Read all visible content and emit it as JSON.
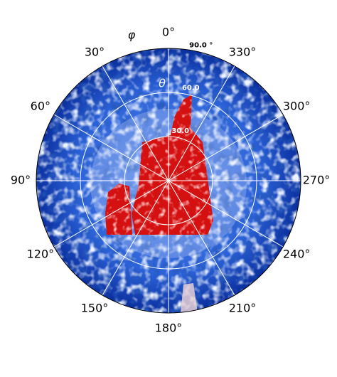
{
  "chart_data": {
    "type": "polar-image",
    "x_label": "φ",
    "y_label": "θ",
    "theta_zero": "top",
    "theta_direction": "counterclockwise",
    "xticks": [
      {
        "value": 0,
        "label": "0°"
      },
      {
        "value": 30,
        "label": "30°"
      },
      {
        "value": 60,
        "label": "60°"
      },
      {
        "value": 90,
        "label": "90°"
      },
      {
        "value": 120,
        "label": "120°"
      },
      {
        "value": 150,
        "label": "150°"
      },
      {
        "value": 180,
        "label": "180°"
      },
      {
        "value": 210,
        "label": "210°"
      },
      {
        "value": 240,
        "label": "240°"
      },
      {
        "value": 270,
        "label": "270°"
      },
      {
        "value": 300,
        "label": "300°"
      },
      {
        "value": 330,
        "label": "330°"
      }
    ],
    "ylim": [
      0,
      90
    ],
    "yticks": [
      {
        "value": 30,
        "label": "30.0"
      },
      {
        "value": 60,
        "label": "60.0"
      },
      {
        "value": 90,
        "label": "90.0 °"
      }
    ],
    "grid": true
  }
}
